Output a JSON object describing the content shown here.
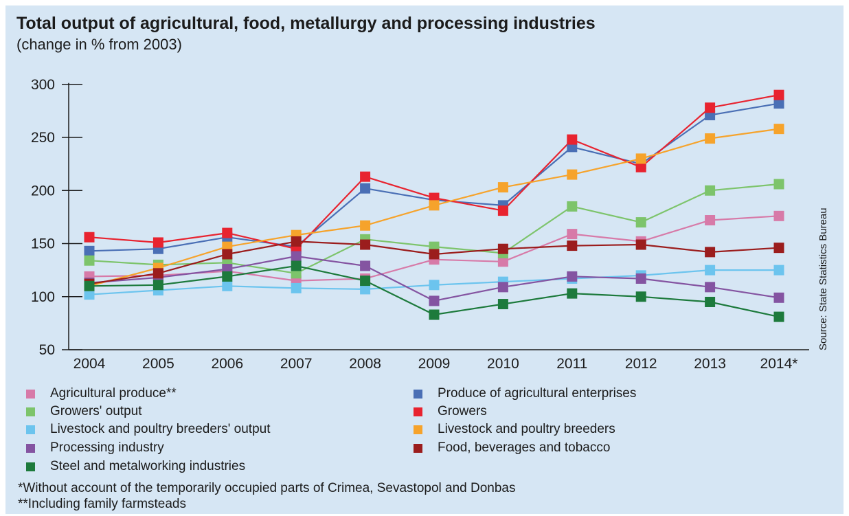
{
  "title": "Total output of agricultural, food, metallurgy and processing industries",
  "subtitle": "(change in % from 2003)",
  "source": "Source: State Statistics Bureau",
  "footnotes": [
    "*Without account of the temporarily occupied parts of Crimea, Sevastopol and Donbas",
    "**Including family farmsteads"
  ],
  "chart_data": {
    "type": "line",
    "title": "Total output of agricultural, food, metallurgy and processing industries",
    "subtitle": "(change in % from 2003)",
    "xlabel": "",
    "ylabel": "",
    "ylim": [
      50,
      300
    ],
    "yticks": [
      50,
      100,
      150,
      200,
      250,
      300
    ],
    "grid": false,
    "legend_placement": "bottom",
    "categories": [
      "2004",
      "2005",
      "2006",
      "2007",
      "2008",
      "2009",
      "2010",
      "2011",
      "2012",
      "2013",
      "2014*"
    ],
    "series": [
      {
        "name": "Agricultural produce**",
        "color": "#d77aa8",
        "values": [
          119,
          120,
          124,
          115,
          117,
          135,
          133,
          159,
          152,
          172,
          176
        ]
      },
      {
        "name": "Produce of agricultural enterprises",
        "color": "#4a6fb5",
        "values": [
          143,
          145,
          156,
          147,
          202,
          191,
          186,
          241,
          225,
          271,
          282
        ]
      },
      {
        "name": "Growers' output",
        "color": "#7dc46b",
        "values": [
          134,
          130,
          132,
          122,
          154,
          147,
          141,
          185,
          170,
          200,
          206
        ]
      },
      {
        "name": "Growers",
        "color": "#e8232f",
        "values": [
          156,
          151,
          160,
          145,
          213,
          193,
          181,
          248,
          222,
          278,
          290
        ]
      },
      {
        "name": "Livestock and poultry breeders' output",
        "color": "#6cc4ee",
        "values": [
          102,
          106,
          110,
          108,
          107,
          111,
          114,
          117,
          120,
          125,
          125
        ]
      },
      {
        "name": "Livestock and poultry breeders",
        "color": "#f6a32b",
        "values": [
          110,
          127,
          147,
          158,
          167,
          186,
          203,
          215,
          230,
          249,
          258
        ]
      },
      {
        "name": "Processing industry",
        "color": "#8454a1",
        "values": [
          113,
          118,
          126,
          138,
          129,
          96,
          109,
          119,
          117,
          109,
          99
        ]
      },
      {
        "name": "Food, beverages and tobacco",
        "color": "#9b1d1d",
        "values": [
          112,
          122,
          140,
          152,
          149,
          140,
          145,
          148,
          149,
          142,
          146
        ]
      },
      {
        "name": "Steel and metalworking industries",
        "color": "#1d7a3c",
        "values": [
          110,
          111,
          119,
          129,
          115,
          83,
          93,
          103,
          100,
          95,
          81
        ]
      }
    ]
  },
  "legend": {
    "left": [
      {
        "label": "Agricultural produce**",
        "color": "#d77aa8"
      },
      {
        "label": "Growers' output",
        "color": "#7dc46b"
      },
      {
        "label": "Livestock and poultry breeders' output",
        "color": "#6cc4ee"
      },
      {
        "label": "Processing industry",
        "color": "#8454a1"
      },
      {
        "label": "Steel and metalworking industries",
        "color": "#1d7a3c"
      }
    ],
    "right": [
      {
        "label": "Produce of agricultural enterprises",
        "color": "#4a6fb5"
      },
      {
        "label": "Growers",
        "color": "#e8232f"
      },
      {
        "label": "Livestock and poultry breeders",
        "color": "#f6a32b"
      },
      {
        "label": "Food, beverages and tobacco",
        "color": "#9b1d1d"
      }
    ]
  }
}
